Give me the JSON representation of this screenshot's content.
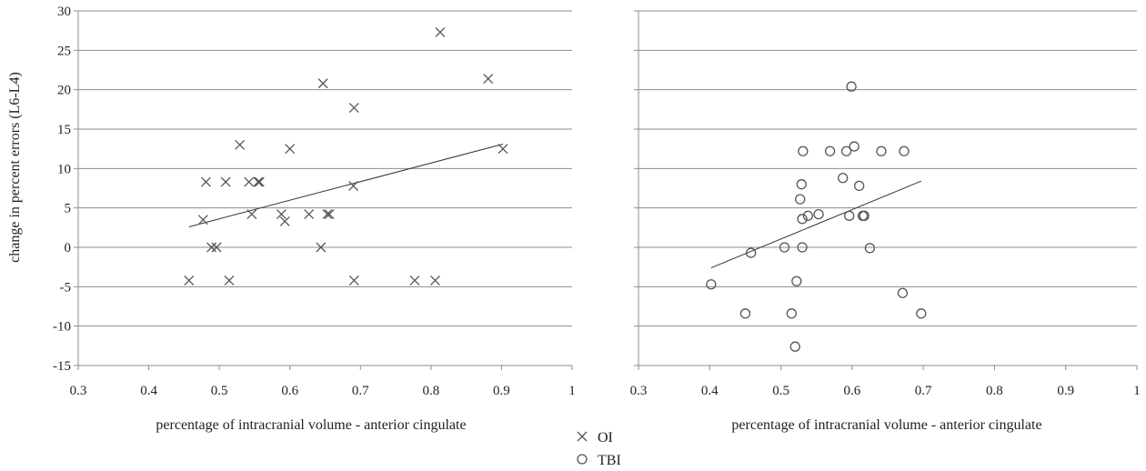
{
  "chart_data": [
    {
      "type": "scatter",
      "ylabel": "change in percent errors (L6-L4)",
      "xlabel": "percentage of intracranial volume - anterior cingulate",
      "xlim": [
        0.3,
        1
      ],
      "ylim": [
        -15,
        30
      ],
      "xticks": [
        "0.3",
        "0.4",
        "0.5",
        "0.6",
        "0.7",
        "0.8",
        "0.9",
        "1"
      ],
      "yticks": [
        "30",
        "25",
        "20",
        "15",
        "10",
        "5",
        "0",
        "-5",
        "-10",
        "-15"
      ],
      "grid": "horizontal",
      "series": [
        {
          "name": "OI",
          "marker": "x",
          "color": "#555555",
          "points": [
            [
              0.457,
              -4.2
            ],
            [
              0.477,
              3.5
            ],
            [
              0.481,
              8.3
            ],
            [
              0.489,
              0.0
            ],
            [
              0.496,
              0.0
            ],
            [
              0.509,
              8.3
            ],
            [
              0.514,
              -4.2
            ],
            [
              0.529,
              13.0
            ],
            [
              0.542,
              8.3
            ],
            [
              0.546,
              4.2
            ],
            [
              0.555,
              8.3
            ],
            [
              0.557,
              8.3
            ],
            [
              0.588,
              4.2
            ],
            [
              0.593,
              3.3
            ],
            [
              0.6,
              12.5
            ],
            [
              0.627,
              4.2
            ],
            [
              0.644,
              0.0
            ],
            [
              0.647,
              20.8
            ],
            [
              0.653,
              4.2
            ],
            [
              0.656,
              4.2
            ],
            [
              0.69,
              7.8
            ],
            [
              0.691,
              17.7
            ],
            [
              0.691,
              -4.2
            ],
            [
              0.777,
              -4.2
            ],
            [
              0.806,
              -4.2
            ],
            [
              0.813,
              27.3
            ],
            [
              0.881,
              21.4
            ],
            [
              0.902,
              12.5
            ]
          ],
          "trendline": [
            [
              0.457,
              2.6
            ],
            [
              0.902,
              13.1
            ]
          ]
        }
      ]
    },
    {
      "type": "scatter",
      "xlabel": "percentage of intracranial volume - anterior cingulate",
      "xlim": [
        0.3,
        1
      ],
      "ylim": [
        -15,
        30
      ],
      "xticks": [
        "0.3",
        "0.4",
        "0.5",
        "0.6",
        "0.7",
        "0.8",
        "0.9",
        "1"
      ],
      "grid": "horizontal",
      "series": [
        {
          "name": "TBI",
          "marker": "o",
          "color": "#555555",
          "points": [
            [
              0.402,
              -4.7
            ],
            [
              0.45,
              -8.4
            ],
            [
              0.458,
              -0.7
            ],
            [
              0.505,
              0.0
            ],
            [
              0.515,
              -8.4
            ],
            [
              0.52,
              -12.6
            ],
            [
              0.522,
              -4.3
            ],
            [
              0.527,
              6.1
            ],
            [
              0.529,
              8.0
            ],
            [
              0.53,
              0.0
            ],
            [
              0.53,
              3.6
            ],
            [
              0.531,
              12.2
            ],
            [
              0.538,
              4.0
            ],
            [
              0.553,
              4.2
            ],
            [
              0.569,
              12.2
            ],
            [
              0.587,
              8.8
            ],
            [
              0.592,
              12.2
            ],
            [
              0.596,
              4.0
            ],
            [
              0.599,
              20.4
            ],
            [
              0.603,
              12.8
            ],
            [
              0.61,
              7.8
            ],
            [
              0.615,
              4.0
            ],
            [
              0.617,
              4.0
            ],
            [
              0.625,
              -0.1
            ],
            [
              0.641,
              12.2
            ],
            [
              0.671,
              -5.8
            ],
            [
              0.673,
              12.2
            ],
            [
              0.697,
              -8.4
            ]
          ],
          "trendline": [
            [
              0.402,
              -2.6
            ],
            [
              0.697,
              8.4
            ]
          ]
        }
      ]
    }
  ],
  "legend": {
    "placement": "bottom-center",
    "items": [
      {
        "label": "OI",
        "marker": "x"
      },
      {
        "label": "TBI",
        "marker": "o"
      }
    ]
  }
}
